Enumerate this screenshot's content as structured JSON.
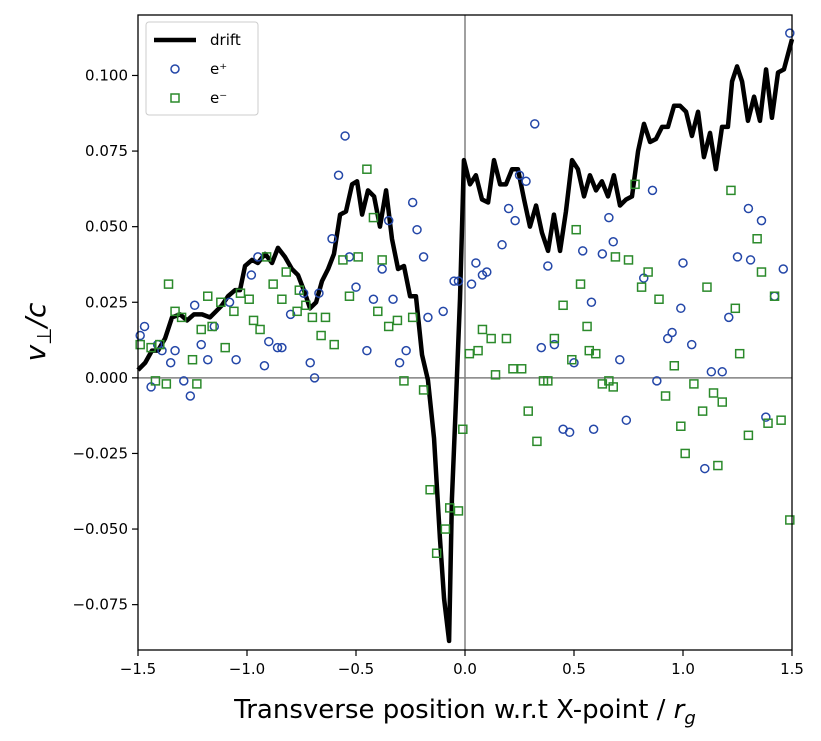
{
  "chart_data": {
    "type": "line",
    "xlabel": "Transverse position w.r.t X-point /",
    "xlabel_var": "r",
    "xlabel_sub": "g",
    "ylabel_var": "v",
    "ylabel_sub": "⊥",
    "ylabel_tail": "/c",
    "xlim": [
      -1.5,
      1.5
    ],
    "ylim": [
      -0.09,
      0.12
    ],
    "xticks": [
      {
        "value": -1.5,
        "label": "−1.5"
      },
      {
        "value": -1.0,
        "label": "−1.0"
      },
      {
        "value": -0.5,
        "label": "−0.5"
      },
      {
        "value": 0,
        "label": "0.0"
      },
      0.5,
      {
        "value": 1.0,
        "label": "1.0"
      },
      1.5
    ],
    "yticks": [
      {
        "value": -0.075,
        "label": "−0.075"
      },
      {
        "value": -0.05,
        "label": "−0.050"
      },
      {
        "value": -0.025,
        "label": "−0.025"
      },
      {
        "value": 0,
        "label": "0.000"
      },
      0.025,
      {
        "value": 0.05,
        "label": "0.050"
      },
      0.075,
      {
        "value": 0.1,
        "label": "0.100"
      }
    ],
    "hline": 0,
    "vline": 0,
    "legend": "upper left",
    "series": [
      {
        "name": "drift",
        "type": "line",
        "color": "#000000",
        "x": [
          -1.5,
          -1.467,
          -1.436,
          -1.408,
          -1.376,
          -1.344,
          -1.307,
          -1.275,
          -1.243,
          -1.206,
          -1.17,
          -1.142,
          -1.115,
          -1.087,
          -1.055,
          -1.032,
          -1.009,
          -0.977,
          -0.95,
          -0.917,
          -0.885,
          -0.858,
          -0.826,
          -0.794,
          -0.766,
          -0.734,
          -0.711,
          -0.683,
          -0.656,
          -0.628,
          -0.601,
          -0.573,
          -0.546,
          -0.518,
          -0.495,
          -0.472,
          -0.445,
          -0.417,
          -0.39,
          -0.362,
          -0.335,
          -0.307,
          -0.28,
          -0.252,
          -0.225,
          -0.197,
          -0.17,
          -0.142,
          -0.115,
          -0.096,
          -0.073,
          -0.06,
          -0.041,
          -0.023,
          -0.005,
          0.023,
          0.05,
          0.078,
          0.106,
          0.133,
          0.161,
          0.188,
          0.216,
          0.243,
          0.271,
          0.298,
          0.326,
          0.353,
          0.381,
          0.408,
          0.436,
          0.463,
          0.491,
          0.518,
          0.546,
          0.573,
          0.601,
          0.628,
          0.656,
          0.683,
          0.711,
          0.739,
          0.766,
          0.794,
          0.821,
          0.849,
          0.876,
          0.904,
          0.931,
          0.959,
          0.986,
          1.014,
          1.041,
          1.069,
          1.096,
          1.124,
          1.151,
          1.179,
          1.206,
          1.225,
          1.248,
          1.271,
          1.298,
          1.326,
          1.353,
          1.381,
          1.408,
          1.436,
          1.463,
          1.5
        ],
        "values": [
          0.0026,
          0.005,
          0.009,
          0.009,
          0.013,
          0.02,
          0.021,
          0.019,
          0.021,
          0.021,
          0.02,
          0.022,
          0.024,
          0.027,
          0.029,
          0.029,
          0.037,
          0.039,
          0.038,
          0.041,
          0.038,
          0.043,
          0.04,
          0.036,
          0.034,
          0.028,
          0.023,
          0.025,
          0.032,
          0.036,
          0.041,
          0.054,
          0.055,
          0.064,
          0.065,
          0.054,
          0.062,
          0.06,
          0.05,
          0.062,
          0.046,
          0.036,
          0.037,
          0.027,
          0.027,
          0.0076,
          -0.0007,
          -0.02,
          -0.053,
          -0.073,
          -0.087,
          -0.04,
          -0.007,
          0.026,
          0.072,
          0.064,
          0.067,
          0.059,
          0.058,
          0.072,
          0.064,
          0.064,
          0.069,
          0.069,
          0.059,
          0.05,
          0.057,
          0.048,
          0.042,
          0.054,
          0.042,
          0.055,
          0.072,
          0.069,
          0.06,
          0.067,
          0.062,
          0.065,
          0.06,
          0.067,
          0.057,
          0.059,
          0.06,
          0.075,
          0.084,
          0.078,
          0.079,
          0.083,
          0.083,
          0.09,
          0.09,
          0.088,
          0.08,
          0.088,
          0.073,
          0.081,
          0.069,
          0.083,
          0.083,
          0.098,
          0.103,
          0.098,
          0.085,
          0.093,
          0.085,
          0.102,
          0.086,
          0.101,
          0.102,
          0.112
        ]
      },
      {
        "name": "e⁺",
        "type": "scatter",
        "marker": "circle",
        "color": "#2447a8",
        "x": [
          -1.49,
          -1.47,
          -1.44,
          -1.41,
          -1.39,
          -1.35,
          -1.33,
          -1.29,
          -1.26,
          -1.24,
          -1.21,
          -1.18,
          -1.15,
          -1.08,
          -1.05,
          -0.98,
          -0.95,
          -0.92,
          -0.9,
          -0.86,
          -0.84,
          -0.8,
          -0.74,
          -0.71,
          -0.69,
          -0.67,
          -0.61,
          -0.58,
          -0.55,
          -0.53,
          -0.5,
          -0.45,
          -0.42,
          -0.38,
          -0.35,
          -0.33,
          -0.3,
          -0.27,
          -0.24,
          -0.22,
          -0.19,
          -0.17,
          -0.1,
          -0.05,
          -0.03,
          0.03,
          0.05,
          0.08,
          0.1,
          0.17,
          0.2,
          0.23,
          0.25,
          0.28,
          0.32,
          0.35,
          0.38,
          0.41,
          0.45,
          0.48,
          0.5,
          0.54,
          0.58,
          0.59,
          0.63,
          0.66,
          0.68,
          0.71,
          0.74,
          0.82,
          0.86,
          0.88,
          0.93,
          0.95,
          0.99,
          1.0,
          1.04,
          1.1,
          1.13,
          1.18,
          1.21,
          1.25,
          1.3,
          1.31,
          1.36,
          1.38,
          1.42,
          1.46,
          1.49
        ],
        "values": [
          0.014,
          0.017,
          -0.003,
          0.011,
          0.009,
          0.005,
          0.009,
          -0.001,
          -0.006,
          0.024,
          0.011,
          0.006,
          0.017,
          0.025,
          0.006,
          0.034,
          0.04,
          0.004,
          0.012,
          0.01,
          0.01,
          0.021,
          0.028,
          0.005,
          0.0,
          0.028,
          0.046,
          0.067,
          0.08,
          0.04,
          0.03,
          0.009,
          0.026,
          0.036,
          0.052,
          0.026,
          0.005,
          0.009,
          0.058,
          0.049,
          0.04,
          0.02,
          0.022,
          0.032,
          0.032,
          0.031,
          0.038,
          0.034,
          0.035,
          0.044,
          0.056,
          0.052,
          0.067,
          0.065,
          0.084,
          0.01,
          0.037,
          0.011,
          -0.017,
          -0.018,
          0.005,
          0.042,
          0.025,
          -0.017,
          0.041,
          0.053,
          0.045,
          0.006,
          -0.014,
          0.033,
          0.062,
          -0.001,
          0.013,
          0.015,
          0.023,
          0.038,
          0.011,
          -0.03,
          0.002,
          0.002,
          0.02,
          0.04,
          0.056,
          0.039,
          0.052,
          -0.013,
          0.027,
          0.036,
          0.114
        ]
      },
      {
        "name": "e⁻",
        "type": "scatter",
        "marker": "square",
        "color": "#2b8a2b",
        "x": [
          -1.49,
          -1.44,
          -1.42,
          -1.4,
          -1.37,
          -1.36,
          -1.33,
          -1.3,
          -1.25,
          -1.23,
          -1.21,
          -1.18,
          -1.16,
          -1.12,
          -1.1,
          -1.06,
          -1.03,
          -0.99,
          -0.97,
          -0.94,
          -0.91,
          -0.88,
          -0.84,
          -0.82,
          -0.77,
          -0.76,
          -0.73,
          -0.7,
          -0.66,
          -0.64,
          -0.6,
          -0.56,
          -0.53,
          -0.49,
          -0.45,
          -0.42,
          -0.4,
          -0.38,
          -0.35,
          -0.31,
          -0.28,
          -0.24,
          -0.19,
          -0.16,
          -0.13,
          -0.09,
          -0.07,
          -0.03,
          -0.01,
          0.02,
          0.06,
          0.08,
          0.12,
          0.14,
          0.19,
          0.22,
          0.26,
          0.29,
          0.33,
          0.36,
          0.38,
          0.41,
          0.45,
          0.49,
          0.51,
          0.53,
          0.56,
          0.57,
          0.6,
          0.63,
          0.66,
          0.68,
          0.69,
          0.75,
          0.78,
          0.81,
          0.84,
          0.89,
          0.92,
          0.96,
          0.99,
          1.01,
          1.05,
          1.09,
          1.11,
          1.14,
          1.16,
          1.18,
          1.22,
          1.24,
          1.26,
          1.3,
          1.34,
          1.36,
          1.39,
          1.42,
          1.45,
          1.49
        ],
        "values": [
          0.011,
          0.01,
          -0.001,
          0.011,
          -0.002,
          0.031,
          0.022,
          0.02,
          0.006,
          -0.002,
          0.016,
          0.027,
          0.017,
          0.025,
          0.01,
          0.022,
          0.028,
          0.026,
          0.019,
          0.016,
          0.04,
          0.031,
          0.026,
          0.035,
          0.022,
          0.029,
          0.024,
          0.02,
          0.014,
          0.02,
          0.011,
          0.039,
          0.027,
          0.04,
          0.069,
          0.053,
          0.022,
          0.039,
          0.017,
          0.019,
          -0.001,
          0.02,
          -0.004,
          -0.037,
          -0.058,
          -0.05,
          -0.043,
          -0.044,
          -0.017,
          0.008,
          0.009,
          0.016,
          0.013,
          0.001,
          0.013,
          0.003,
          0.003,
          -0.011,
          -0.021,
          -0.001,
          -0.001,
          0.013,
          0.024,
          0.006,
          0.049,
          0.031,
          0.017,
          0.009,
          0.008,
          -0.002,
          -0.001,
          -0.003,
          0.04,
          0.039,
          0.064,
          0.03,
          0.035,
          0.026,
          -0.006,
          0.004,
          -0.016,
          -0.025,
          -0.002,
          -0.011,
          0.03,
          -0.005,
          -0.029,
          -0.008,
          0.062,
          0.023,
          0.008,
          -0.019,
          0.046,
          0.035,
          -0.015,
          0.027,
          -0.014,
          -0.047
        ]
      }
    ]
  }
}
